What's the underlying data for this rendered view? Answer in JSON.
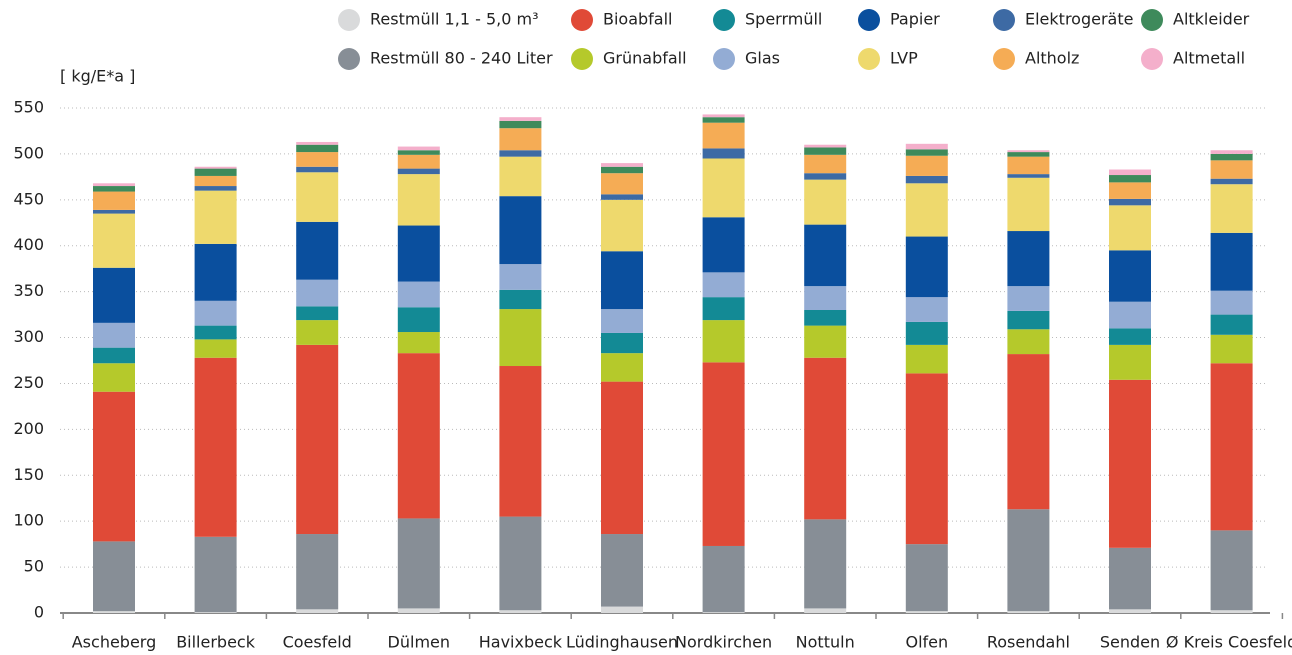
{
  "chart_data": {
    "type": "stacked_bar",
    "y_label": "[ kg/E*a ]",
    "categories": [
      "Ascheberg",
      "Billerbeck",
      "Coesfeld",
      "Dülmen",
      "Havixbeck",
      "Lüdinghausen",
      "Nordkirchen",
      "Nottuln",
      "Olfen",
      "Rosendahl",
      "Senden",
      "Ø Kreis Coesfeld"
    ],
    "series": [
      {
        "name": "Restmüll 1,1 - 5,0 m³",
        "color": "#d9dadb",
        "values": [
          2,
          1,
          4,
          5,
          3,
          7,
          1,
          5,
          2,
          2,
          4,
          3
        ]
      },
      {
        "name": "Restmüll 80 - 240 Liter",
        "color": "#878e96",
        "values": [
          76,
          82,
          82,
          98,
          102,
          79,
          72,
          97,
          73,
          111,
          67,
          87
        ]
      },
      {
        "name": "Bioabfall",
        "color": "#e04a37",
        "values": [
          163,
          195,
          206,
          180,
          164,
          166,
          200,
          176,
          186,
          169,
          183,
          182
        ]
      },
      {
        "name": "Grünabfall",
        "color": "#b5c92b",
        "values": [
          31,
          20,
          27,
          23,
          62,
          31,
          46,
          35,
          31,
          27,
          38,
          31
        ]
      },
      {
        "name": "Sperrmüll",
        "color": "#138a95",
        "values": [
          17,
          15,
          15,
          27,
          21,
          22,
          25,
          17,
          25,
          20,
          18,
          22
        ]
      },
      {
        "name": "Glas",
        "color": "#93acd4",
        "values": [
          27,
          27,
          29,
          28,
          28,
          26,
          27,
          26,
          27,
          27,
          29,
          26
        ]
      },
      {
        "name": "Papier",
        "color": "#0a4f9e",
        "values": [
          60,
          62,
          63,
          61,
          74,
          63,
          60,
          67,
          66,
          60,
          56,
          63
        ]
      },
      {
        "name": "LVP",
        "color": "#eed96d",
        "values": [
          59,
          58,
          54,
          56,
          43,
          56,
          64,
          49,
          58,
          58,
          49,
          53
        ]
      },
      {
        "name": "Elektrogeräte",
        "color": "#3d6aa4",
        "values": [
          4,
          5,
          6,
          6,
          7,
          6,
          11,
          7,
          8,
          4,
          7,
          6
        ]
      },
      {
        "name": "Altholz",
        "color": "#f5ac55",
        "values": [
          20,
          11,
          16,
          15,
          24,
          23,
          28,
          20,
          22,
          19,
          18,
          20
        ]
      },
      {
        "name": "Altkleider",
        "color": "#3e8a5b",
        "values": [
          6,
          8,
          8,
          5,
          8,
          7,
          6,
          8,
          7,
          5,
          8,
          7
        ]
      },
      {
        "name": "Altmetall",
        "color": "#f4afcb",
        "values": [
          3,
          2,
          3,
          4,
          4,
          4,
          3,
          3,
          6,
          2,
          6,
          4
        ]
      }
    ],
    "ylim": [
      0,
      550
    ],
    "yticks": [
      0,
      50,
      100,
      150,
      200,
      250,
      300,
      350,
      400,
      450,
      500,
      550
    ],
    "grid": true,
    "legend": "top"
  }
}
